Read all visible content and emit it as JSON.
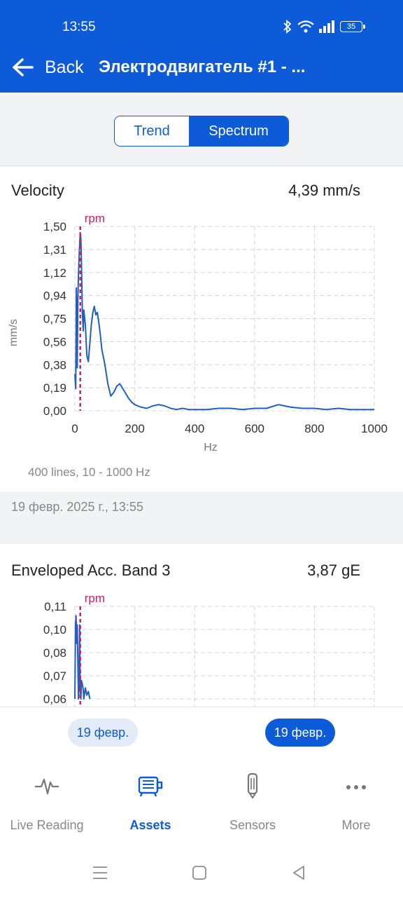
{
  "status_bar": {
    "time": "13:55",
    "battery": "35"
  },
  "app_bar": {
    "back_label": "Back",
    "title": "Электродвигатель #1 - ..."
  },
  "segmented": {
    "trend_label": "Trend",
    "spectrum_label": "Spectrum",
    "selected": "Spectrum"
  },
  "velocity_card": {
    "title": "Velocity",
    "value": "4,39 mm/s",
    "lines_info": "400 lines, 10 - 1000 Hz",
    "date": "19 февр. 2025 г., 13:55"
  },
  "enveloped_card": {
    "title": "Enveloped Acc. Band 3",
    "value": "3,87 gE"
  },
  "date_pills": {
    "left": "19 февр.",
    "right": "19 февр."
  },
  "bottom_nav": [
    {
      "label": "Live Reading",
      "icon": "pulse-icon",
      "active": false
    },
    {
      "label": "Assets",
      "icon": "motor-icon",
      "active": true
    },
    {
      "label": "Sensors",
      "icon": "sensor-icon",
      "active": false
    },
    {
      "label": "More",
      "icon": "more-dots-icon",
      "active": false
    }
  ],
  "colors": {
    "primary": "#0d5bd8",
    "line": "#1f5fc4",
    "rpm_marker": "#d81b60"
  },
  "chart_data": [
    {
      "type": "line",
      "title": "",
      "xlabel": "Hz",
      "ylabel": "mm/s",
      "xlim": [
        0,
        1000
      ],
      "ylim": [
        0,
        1.5
      ],
      "x_ticks": [
        "0",
        "200",
        "400",
        "600",
        "800",
        "1000"
      ],
      "y_ticks": [
        "0,00",
        "0,19",
        "0,38",
        "0,56",
        "0,75",
        "0,94",
        "1,12",
        "1,31",
        "1,50"
      ],
      "marker": {
        "label": "rpm",
        "x": 18
      },
      "series": [
        {
          "x": [
            0,
            3,
            5,
            8,
            10,
            12,
            15,
            18,
            20,
            22,
            25,
            28,
            30,
            35,
            40,
            45,
            50,
            55,
            60,
            65,
            70,
            75,
            80,
            85,
            90,
            95,
            100,
            110,
            120,
            130,
            140,
            150,
            160,
            170,
            180,
            190,
            200,
            210,
            220,
            240,
            260,
            280,
            300,
            320,
            340,
            360,
            380,
            400,
            440,
            480,
            520,
            560,
            600,
            640,
            680,
            700,
            720,
            760,
            800,
            840,
            880,
            920,
            960,
            1000
          ],
          "y": [
            0.3,
            0.18,
            1.0,
            0.35,
            0.9,
            1.1,
            1.3,
            1.45,
            1.4,
            1.2,
            0.8,
            0.65,
            0.82,
            0.7,
            0.45,
            0.4,
            0.55,
            0.7,
            0.8,
            0.85,
            0.78,
            0.8,
            0.72,
            0.62,
            0.5,
            0.44,
            0.38,
            0.22,
            0.12,
            0.15,
            0.2,
            0.22,
            0.18,
            0.14,
            0.1,
            0.07,
            0.05,
            0.04,
            0.03,
            0.02,
            0.04,
            0.05,
            0.04,
            0.02,
            0.01,
            0.02,
            0.01,
            0.01,
            0.01,
            0.02,
            0.02,
            0.01,
            0.02,
            0.02,
            0.05,
            0.04,
            0.03,
            0.02,
            0.02,
            0.01,
            0.02,
            0.01,
            0.01,
            0.01
          ]
        }
      ]
    },
    {
      "type": "line",
      "title": "",
      "xlim": [
        0,
        1000
      ],
      "ylim": [
        0.06,
        0.11
      ],
      "y_ticks": [
        "0,06",
        "0,07",
        "0,08",
        "0,10",
        "0,11"
      ],
      "marker": {
        "label": "rpm",
        "x": 18
      },
      "series": [
        {
          "x": [
            0,
            2,
            4,
            6,
            8,
            10,
            12,
            14,
            16,
            18,
            20,
            22,
            25,
            28,
            30,
            35,
            40,
            45,
            50
          ],
          "y": [
            0.06,
            0.1,
            0.105,
            0.09,
            0.1,
            0.08,
            0.06,
            0.07,
            0.1,
            0.065,
            0.06,
            0.07,
            0.068,
            0.065,
            0.06,
            0.066,
            0.062,
            0.064,
            0.06
          ]
        }
      ]
    }
  ]
}
